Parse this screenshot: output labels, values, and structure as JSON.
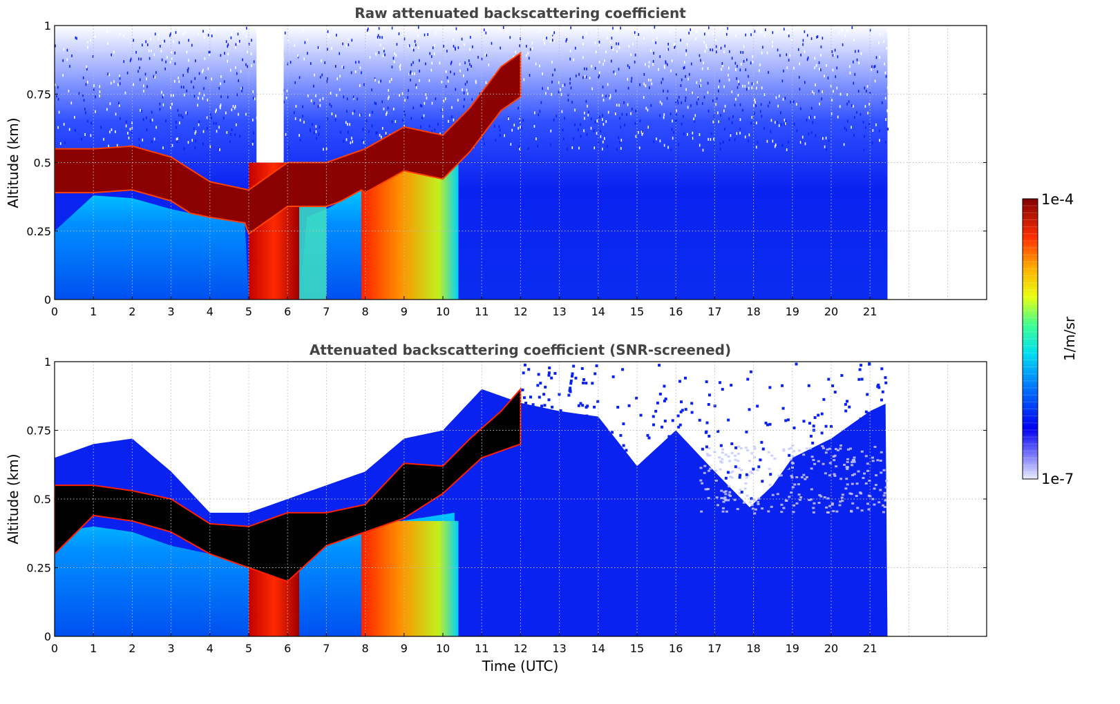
{
  "chart_data": [
    {
      "type": "heatmap",
      "title": "Raw attenuated backscattering coefficient",
      "xlabel": "",
      "ylabel": "Altitude (km)",
      "xlim": [
        0,
        24
      ],
      "ylim": [
        0,
        1
      ],
      "x_ticks": [
        "0",
        "1",
        "2",
        "3",
        "4",
        "5",
        "6",
        "7",
        "8",
        "9",
        "10",
        "11",
        "12",
        "13",
        "14",
        "15",
        "16",
        "17",
        "18",
        "19",
        "20",
        "21"
      ],
      "y_ticks": [
        "0",
        "0.25",
        "0.5",
        "0.75",
        "1"
      ],
      "data_extent_x": [
        0,
        21.45
      ],
      "grid": true,
      "colorscale": "jet (log)",
      "screened": false,
      "features": {
        "cloud_layer_top_km": [
          [
            0,
            0.55
          ],
          [
            1,
            0.55
          ],
          [
            2,
            0.56
          ],
          [
            3,
            0.52
          ],
          [
            4,
            0.43
          ],
          [
            5,
            0.4
          ],
          [
            6,
            0.5
          ],
          [
            7,
            0.5
          ],
          [
            8,
            0.55
          ],
          [
            9,
            0.63
          ],
          [
            10,
            0.6
          ],
          [
            10.7,
            0.7
          ],
          [
            11.5,
            0.85
          ],
          [
            12,
            0.9
          ]
        ],
        "cloud_layer_base_km": [
          [
            0,
            0.25
          ],
          [
            1,
            0.38
          ],
          [
            2,
            0.37
          ],
          [
            3,
            0.33
          ],
          [
            4,
            0.3
          ],
          [
            4.9,
            0.28
          ],
          [
            5,
            0.0
          ],
          [
            6.3,
            0.0
          ],
          [
            6.5,
            0.3
          ],
          [
            7,
            0.33
          ],
          [
            7.9,
            0.4
          ],
          [
            8,
            0.0
          ],
          [
            10.3,
            0.0
          ],
          [
            10.5,
            0.5
          ],
          [
            11,
            0.55
          ],
          [
            12,
            0.7
          ]
        ],
        "clear_gap_hours": [
          5.3,
          5.8
        ]
      }
    },
    {
      "type": "heatmap",
      "title": "Attenuated backscattering coefficient (SNR-screened)",
      "xlabel": "Time (UTC)",
      "ylabel": "Altitude (km)",
      "xlim": [
        0,
        24
      ],
      "ylim": [
        0,
        1
      ],
      "x_ticks": [
        "0",
        "1",
        "2",
        "3",
        "4",
        "5",
        "6",
        "7",
        "8",
        "9",
        "10",
        "11",
        "12",
        "13",
        "14",
        "15",
        "16",
        "17",
        "18",
        "19",
        "20",
        "21"
      ],
      "y_ticks": [
        "0",
        "0.25",
        "0.5",
        "0.75",
        "1"
      ],
      "data_extent_x": [
        0,
        21.45
      ],
      "grid": true,
      "colorscale": "jet (log)",
      "screened": true,
      "features": {
        "screened_top_km": [
          [
            0,
            0.65
          ],
          [
            1,
            0.7
          ],
          [
            2,
            0.72
          ],
          [
            3,
            0.6
          ],
          [
            4,
            0.45
          ],
          [
            5,
            0.45
          ],
          [
            6,
            0.5
          ],
          [
            7,
            0.55
          ],
          [
            8,
            0.6
          ],
          [
            9,
            0.72
          ],
          [
            10,
            0.75
          ],
          [
            11,
            0.9
          ],
          [
            12,
            0.85
          ],
          [
            13,
            0.82
          ],
          [
            14,
            0.8
          ],
          [
            15,
            0.62
          ],
          [
            16,
            0.75
          ],
          [
            17,
            0.6
          ],
          [
            17.9,
            0.47
          ],
          [
            18.5,
            0.55
          ],
          [
            19,
            0.65
          ],
          [
            20,
            0.72
          ],
          [
            21,
            0.82
          ],
          [
            21.45,
            0.85
          ]
        ]
      }
    }
  ],
  "colorbar": {
    "label": "1/m/sr",
    "max_label": "1e-4",
    "min_label": "1e-7",
    "scale": "log",
    "range": [
      1e-07,
      0.0001
    ]
  },
  "colors": {
    "axis": "#000000",
    "title": "#444444",
    "grid": "#bbbbbb",
    "background": "#0a20f0",
    "cloud_core": "#8b0000",
    "screened_core": "#000000"
  }
}
